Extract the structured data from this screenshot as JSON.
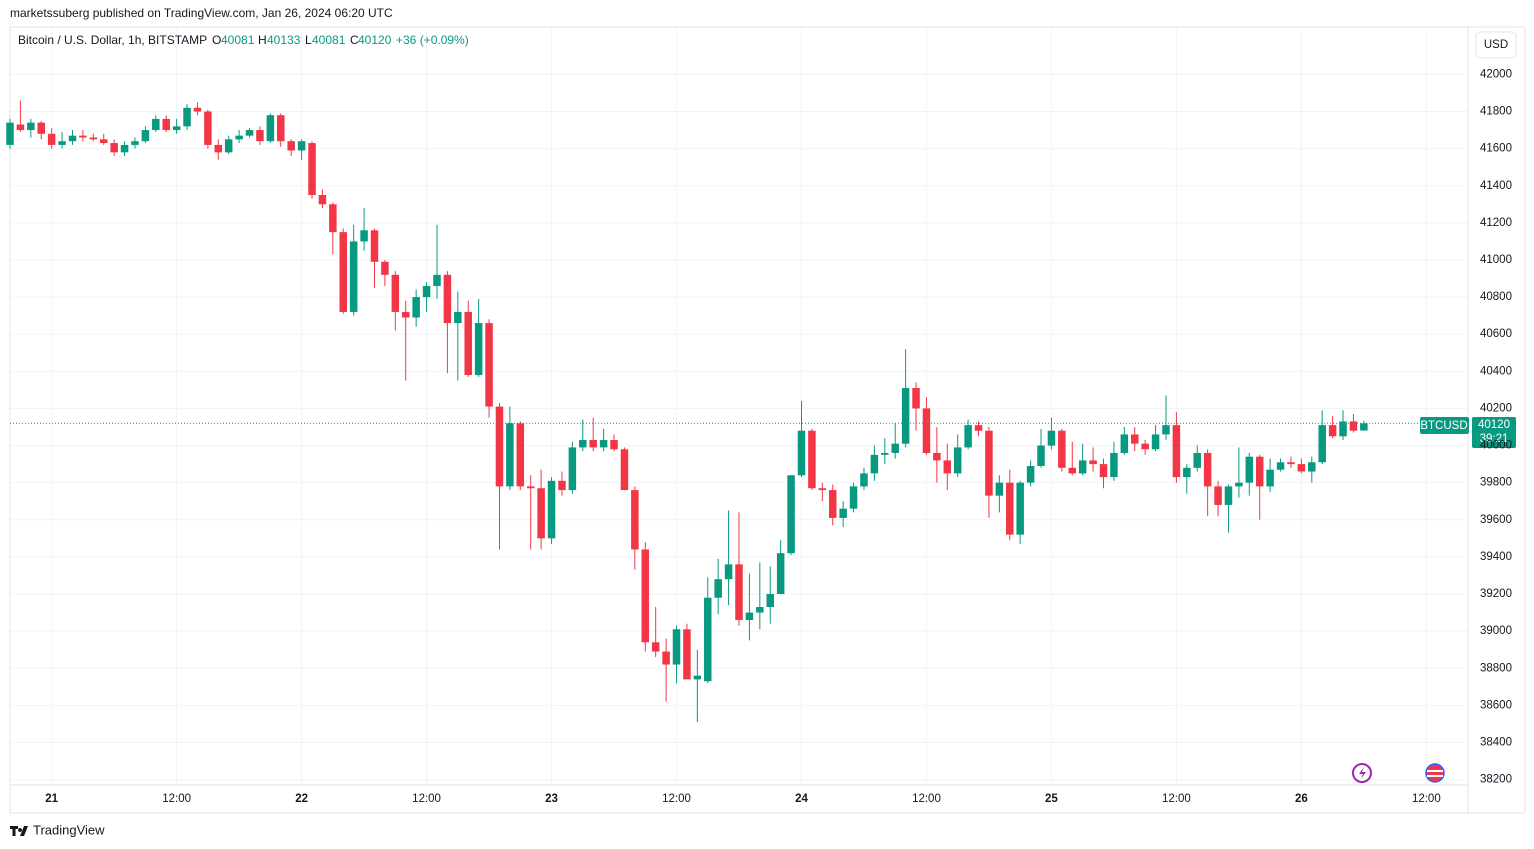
{
  "header": {
    "publisher": "marketssuberg published on TradingView.com, Jan 26, 2024 06:20 UTC",
    "logo": "TradingView"
  },
  "chart_data": {
    "type": "candlestick",
    "title": "Bitcoin / U.S. Dollar, 1h, BITSTAMP",
    "currency": "USD",
    "symbol": "BTCUSD",
    "countdown": "39:21",
    "change": "+36 (+0.09%)",
    "ohlc_labels": [
      "O",
      "H",
      "L",
      "C"
    ],
    "up_color": "#089981",
    "down_color": "#f23645",
    "grid": true,
    "x": [
      "2024-01-20 20:00",
      "2024-01-20 21:00",
      "2024-01-20 22:00",
      "2024-01-20 23:00",
      "2024-01-21 00:00",
      "2024-01-21 01:00",
      "2024-01-21 02:00",
      "2024-01-21 03:00",
      "2024-01-21 04:00",
      "2024-01-21 05:00",
      "2024-01-21 06:00",
      "2024-01-21 07:00",
      "2024-01-21 08:00",
      "2024-01-21 09:00",
      "2024-01-21 10:00",
      "2024-01-21 11:00",
      "2024-01-21 12:00",
      "2024-01-21 13:00",
      "2024-01-21 14:00",
      "2024-01-21 15:00",
      "2024-01-21 16:00",
      "2024-01-21 17:00",
      "2024-01-21 18:00",
      "2024-01-21 19:00",
      "2024-01-21 20:00",
      "2024-01-21 21:00",
      "2024-01-21 22:00",
      "2024-01-21 23:00",
      "2024-01-22 00:00",
      "2024-01-22 01:00",
      "2024-01-22 02:00",
      "2024-01-22 03:00",
      "2024-01-22 04:00",
      "2024-01-22 05:00",
      "2024-01-22 06:00",
      "2024-01-22 07:00",
      "2024-01-22 08:00",
      "2024-01-22 09:00",
      "2024-01-22 10:00",
      "2024-01-22 11:00",
      "2024-01-22 12:00",
      "2024-01-22 13:00",
      "2024-01-22 14:00",
      "2024-01-22 15:00",
      "2024-01-22 16:00",
      "2024-01-22 17:00",
      "2024-01-22 18:00",
      "2024-01-22 19:00",
      "2024-01-22 20:00",
      "2024-01-22 21:00",
      "2024-01-22 22:00",
      "2024-01-22 23:00",
      "2024-01-23 00:00",
      "2024-01-23 01:00",
      "2024-01-23 02:00",
      "2024-01-23 03:00",
      "2024-01-23 04:00",
      "2024-01-23 05:00",
      "2024-01-23 06:00",
      "2024-01-23 07:00",
      "2024-01-23 08:00",
      "2024-01-23 09:00",
      "2024-01-23 10:00",
      "2024-01-23 11:00",
      "2024-01-23 12:00",
      "2024-01-23 13:00",
      "2024-01-23 14:00",
      "2024-01-23 15:00",
      "2024-01-23 16:00",
      "2024-01-23 17:00",
      "2024-01-23 18:00",
      "2024-01-23 19:00",
      "2024-01-23 20:00",
      "2024-01-23 21:00",
      "2024-01-23 22:00",
      "2024-01-23 23:00",
      "2024-01-24 00:00",
      "2024-01-24 01:00",
      "2024-01-24 02:00",
      "2024-01-24 03:00",
      "2024-01-24 04:00",
      "2024-01-24 05:00",
      "2024-01-24 06:00",
      "2024-01-24 07:00",
      "2024-01-24 08:00",
      "2024-01-24 09:00",
      "2024-01-24 10:00",
      "2024-01-24 11:00",
      "2024-01-24 12:00",
      "2024-01-24 13:00",
      "2024-01-24 14:00",
      "2024-01-24 15:00",
      "2024-01-24 16:00",
      "2024-01-24 17:00",
      "2024-01-24 18:00",
      "2024-01-24 19:00",
      "2024-01-24 20:00",
      "2024-01-24 21:00",
      "2024-01-24 22:00",
      "2024-01-24 23:00",
      "2024-01-25 00:00",
      "2024-01-25 01:00",
      "2024-01-25 02:00",
      "2024-01-25 03:00",
      "2024-01-25 04:00",
      "2024-01-25 05:00",
      "2024-01-25 06:00",
      "2024-01-25 07:00",
      "2024-01-25 08:00",
      "2024-01-25 09:00",
      "2024-01-25 10:00",
      "2024-01-25 11:00",
      "2024-01-25 12:00",
      "2024-01-25 13:00",
      "2024-01-25 14:00",
      "2024-01-25 15:00",
      "2024-01-25 16:00",
      "2024-01-25 17:00",
      "2024-01-25 18:00",
      "2024-01-25 19:00",
      "2024-01-25 20:00",
      "2024-01-25 21:00",
      "2024-01-25 22:00",
      "2024-01-25 23:00",
      "2024-01-26 00:00",
      "2024-01-26 01:00",
      "2024-01-26 02:00",
      "2024-01-26 03:00",
      "2024-01-26 04:00",
      "2024-01-26 05:00",
      "2024-01-26 06:00"
    ],
    "open": [
      41620,
      41730,
      41700,
      41740,
      41680,
      41620,
      41640,
      41670,
      41660,
      41650,
      41630,
      41580,
      41620,
      41640,
      41700,
      41760,
      41700,
      41720,
      41820,
      41800,
      41620,
      41580,
      41650,
      41670,
      41700,
      41640,
      41780,
      41640,
      41590,
      41630,
      41350,
      41300,
      41150,
      40720,
      41100,
      41160,
      40990,
      40920,
      40720,
      40690,
      40800,
      40860,
      40920,
      40660,
      40720,
      40380,
      40660,
      40210,
      39780,
      40120,
      39780,
      39770,
      39500,
      39810,
      39760,
      39990,
      40030,
      39990,
      40030,
      39980,
      39760,
      39440,
      38940,
      38890,
      38820,
      39010,
      38740,
      38730,
      39180,
      39280,
      39360,
      39060,
      39100,
      39130,
      39200,
      39420,
      39840,
      40080,
      39770,
      39760,
      39610,
      39660,
      39780,
      39850,
      39950,
      39960,
      40010,
      40310,
      40200,
      39960,
      39920,
      39850,
      39990,
      40110,
      40080,
      39730,
      39800,
      39520,
      39800,
      39890,
      40000,
      40080,
      39880,
      39850,
      39920,
      39900,
      39830,
      39960,
      40060,
      40010,
      39980,
      40060,
      40110,
      39830,
      39880,
      39960,
      39780,
      39680,
      39780,
      39800,
      39940,
      39780,
      39870,
      39910,
      39900,
      39860,
      39910,
      40110,
      40050,
      40130,
      40081
    ],
    "high": [
      41760,
      41860,
      41760,
      41750,
      41710,
      41690,
      41700,
      41700,
      41680,
      41680,
      41650,
      41640,
      41660,
      41720,
      41780,
      41780,
      41760,
      41840,
      41850,
      41810,
      41650,
      41670,
      41700,
      41710,
      41720,
      41790,
      41790,
      41650,
      41650,
      41640,
      41380,
      41310,
      41170,
      41190,
      41280,
      41170,
      41000,
      40940,
      40780,
      40840,
      40880,
      41190,
      40940,
      40830,
      40780,
      40790,
      40680,
      40230,
      40210,
      40130,
      39840,
      39870,
      39830,
      39860,
      40020,
      40140,
      40150,
      40090,
      40060,
      39990,
      39780,
      39480,
      39130,
      38960,
      39030,
      39040,
      38900,
      39290,
      39390,
      39650,
      39640,
      39310,
      39370,
      39350,
      39490,
      39840,
      40240,
      40090,
      39800,
      39790,
      39700,
      39800,
      39880,
      40000,
      40040,
      40120,
      40520,
      40340,
      40260,
      40100,
      40010,
      40060,
      40140,
      40130,
      40100,
      39840,
      39870,
      39810,
      39920,
      40090,
      40150,
      40090,
      40020,
      40010,
      39990,
      39930,
      40020,
      40100,
      40100,
      40030,
      40110,
      40270,
      40180,
      39900,
      40000,
      39980,
      39810,
      39790,
      39990,
      39960,
      39950,
      39930,
      39930,
      39940,
      39930,
      39940,
      40190,
      40160,
      40190,
      40170,
      40133
    ],
    "low": [
      41600,
      41690,
      41660,
      41650,
      41600,
      41600,
      41620,
      41640,
      41640,
      41620,
      41560,
      41560,
      41600,
      41630,
      41690,
      41690,
      41680,
      41700,
      41780,
      41600,
      41540,
      41570,
      41630,
      41660,
      41620,
      41630,
      41610,
      41560,
      41540,
      41330,
      41280,
      41030,
      40710,
      40700,
      41050,
      40850,
      40860,
      40620,
      40350,
      40640,
      40720,
      40790,
      40390,
      40350,
      40370,
      40370,
      40150,
      39440,
      39760,
      39760,
      39440,
      39440,
      39470,
      39730,
      39740,
      39970,
      39970,
      39970,
      39970,
      39760,
      39330,
      38890,
      38860,
      38620,
      38720,
      38750,
      38510,
      38720,
      39090,
      39140,
      39030,
      38950,
      39010,
      39040,
      39200,
      39410,
      39830,
      39760,
      39700,
      39570,
      39560,
      39640,
      39760,
      39810,
      39900,
      39930,
      39990,
      40080,
      39950,
      39800,
      39760,
      39830,
      39980,
      40050,
      39610,
      39640,
      39490,
      39470,
      39780,
      39880,
      39980,
      39860,
      39840,
      39840,
      39860,
      39770,
      39810,
      39950,
      39970,
      39950,
      39970,
      40030,
      39800,
      39740,
      39860,
      39620,
      39620,
      39530,
      39720,
      39730,
      39600,
      39750,
      39860,
      39880,
      39850,
      39800,
      39900,
      40040,
      40030,
      40070,
      40081
    ],
    "close": [
      41740,
      41700,
      41740,
      41680,
      41620,
      41640,
      41670,
      41660,
      41650,
      41630,
      41580,
      41620,
      41640,
      41700,
      41760,
      41700,
      41720,
      41820,
      41800,
      41620,
      41580,
      41650,
      41670,
      41700,
      41640,
      41780,
      41640,
      41590,
      41640,
      41350,
      41300,
      41150,
      40720,
      41100,
      41160,
      40990,
      40920,
      40720,
      40690,
      40800,
      40860,
      40920,
      40660,
      40720,
      40380,
      40660,
      40210,
      39780,
      40120,
      39780,
      39770,
      39500,
      39810,
      39760,
      39990,
      40030,
      39990,
      40030,
      39980,
      39760,
      39440,
      38940,
      38890,
      38820,
      39010,
      38740,
      38760,
      39180,
      39280,
      39360,
      39060,
      39100,
      39130,
      39200,
      39420,
      39840,
      40080,
      39770,
      39760,
      39610,
      39660,
      39780,
      39850,
      39950,
      39960,
      40010,
      40310,
      40200,
      39960,
      39920,
      39850,
      39990,
      40110,
      40080,
      39730,
      39800,
      39520,
      39800,
      39890,
      40000,
      40080,
      39880,
      39850,
      39920,
      39900,
      39830,
      39960,
      40060,
      40010,
      39980,
      40060,
      40110,
      39830,
      39880,
      39960,
      39780,
      39680,
      39780,
      39800,
      39940,
      39780,
      39870,
      39910,
      39900,
      39860,
      39910,
      40110,
      40050,
      40130,
      40080,
      40120
    ],
    "xlim": [
      "2024-01-20 20:00",
      "2024-01-26 16:00"
    ],
    "xticks": [
      {
        "value": "2024-01-21 00:00",
        "label": "21"
      },
      {
        "value": "2024-01-21 12:00",
        "label": "12:00"
      },
      {
        "value": "2024-01-22 00:00",
        "label": "22"
      },
      {
        "value": "2024-01-22 12:00",
        "label": "12:00"
      },
      {
        "value": "2024-01-23 00:00",
        "label": "23"
      },
      {
        "value": "2024-01-23 12:00",
        "label": "12:00"
      },
      {
        "value": "2024-01-24 00:00",
        "label": "24"
      },
      {
        "value": "2024-01-24 12:00",
        "label": "12:00"
      },
      {
        "value": "2024-01-25 00:00",
        "label": "25"
      },
      {
        "value": "2024-01-25 12:00",
        "label": "12:00"
      },
      {
        "value": "2024-01-26 00:00",
        "label": "26"
      },
      {
        "value": "2024-01-26 12:00",
        "label": "12:00"
      }
    ],
    "ylim": [
      38020,
      42250
    ],
    "yticks": [
      38200,
      38400,
      38600,
      38800,
      39000,
      39200,
      39400,
      39600,
      39800,
      40000,
      40200,
      40400,
      40600,
      40800,
      41000,
      41200,
      41400,
      41600,
      41800,
      42000
    ]
  }
}
